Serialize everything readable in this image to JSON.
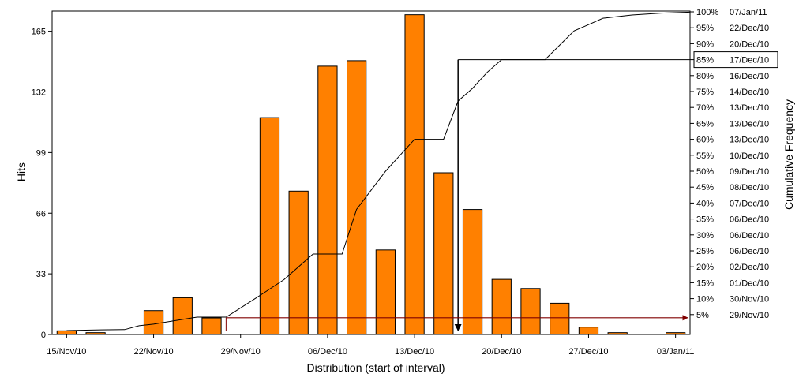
{
  "chart_data": {
    "type": "bar",
    "xlabel": "Distribution (start of interval)",
    "ylabel": "Hits",
    "y2label": "Cumulative Frequency",
    "ylim": [
      0,
      176
    ],
    "yticks": [
      0,
      33,
      66,
      99,
      132,
      165
    ],
    "xticks": [
      "15/Nov/10",
      "22/Nov/10",
      "29/Nov/10",
      "06/Dec/10",
      "13/Dec/10",
      "20/Dec/10",
      "27/Dec/10",
      "03/Jan/11"
    ],
    "bars": {
      "name": "Hits",
      "color": "#FF8000",
      "values": [
        2,
        1,
        0,
        13,
        20,
        9,
        0,
        118,
        78,
        146,
        149,
        46,
        174,
        88,
        68,
        30,
        25,
        17,
        4,
        1,
        0,
        1
      ]
    },
    "cumulative": {
      "name": "Cumulative Frequency",
      "color": "#000000",
      "x_bins": [
        0.5,
        1.5,
        2.5,
        3.0,
        3.5,
        4.5,
        5.0,
        5.5,
        6.0,
        7.0,
        7.5,
        8.0,
        9.0,
        9.5,
        10.0,
        10.5,
        11.0,
        11.5,
        12.0,
        12.5,
        13.0,
        13.5,
        14.0,
        14.5,
        15.0,
        15.5,
        16.0,
        16.5,
        17.0,
        18.0,
        18.5,
        19.0,
        20.0,
        21.0,
        22.0
      ],
      "percent": [
        0.0,
        0.2,
        0.3,
        1.5,
        2.0,
        3.5,
        4.2,
        4.2,
        4.2,
        10.0,
        13.0,
        16.0,
        24.0,
        24.0,
        24.0,
        38.0,
        44.0,
        50.0,
        55.0,
        60.0,
        60.0,
        60.0,
        72.0,
        76.0,
        81.0,
        85.0,
        85.0,
        85.0,
        85.0,
        94.0,
        96.0,
        98.0,
        99.0,
        99.6,
        99.9
      ]
    },
    "right_axis": {
      "percent_labels": [
        "100%",
        "95%",
        "90%",
        "85%",
        "80%",
        "75%",
        "70%",
        "65%",
        "60%",
        "55%",
        "50%",
        "45%",
        "40%",
        "35%",
        "30%",
        "25%",
        "20%",
        "15%",
        "10%",
        "5%"
      ],
      "date_labels": [
        "07/Jan/11",
        "22/Dec/10",
        "20/Dec/10",
        "17/Dec/10",
        "16/Dec/10",
        "14/Dec/10",
        "13/Dec/10",
        "13/Dec/10",
        "13/Dec/10",
        "10/Dec/10",
        "09/Dec/10",
        "08/Dec/10",
        "07/Dec/10",
        "06/Dec/10",
        "06/Dec/10",
        "06/Dec/10",
        "02/Dec/10",
        "01/Dec/10",
        "30/Nov/10",
        "29/Nov/10"
      ]
    },
    "markers": {
      "threshold_85": {
        "percent": 85,
        "x_bin": 14.0,
        "box_label_index": 3
      },
      "threshold_5": {
        "percent": 5,
        "color": "#800000"
      }
    },
    "grid": false,
    "legend": "none"
  }
}
